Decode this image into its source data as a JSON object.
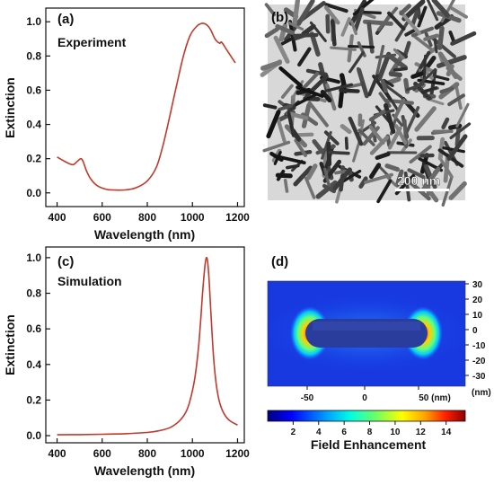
{
  "chart_data": [
    {
      "panel": "(a)",
      "type": "line",
      "annotation": "Experiment",
      "xlabel": "Wavelength (nm)",
      "ylabel": "Extinction",
      "xlim": [
        350,
        1230
      ],
      "ylim": [
        -0.08,
        1.08
      ],
      "xticks": [
        400,
        600,
        800,
        1000,
        1200
      ],
      "yticks": [
        0.0,
        0.2,
        0.4,
        0.6,
        0.8,
        1.0
      ],
      "line_color": "#c0392b",
      "x": [
        400,
        440,
        470,
        490,
        505,
        515,
        530,
        550,
        580,
        620,
        650,
        700,
        750,
        800,
        840,
        870,
        900,
        930,
        960,
        990,
        1020,
        1040,
        1060,
        1080,
        1100,
        1120,
        1130,
        1150,
        1170,
        1190
      ],
      "y": [
        0.21,
        0.18,
        0.165,
        0.185,
        0.2,
        0.185,
        0.13,
        0.08,
        0.04,
        0.02,
        0.017,
        0.017,
        0.03,
        0.07,
        0.15,
        0.28,
        0.45,
        0.63,
        0.8,
        0.92,
        0.975,
        0.99,
        0.985,
        0.955,
        0.9,
        0.875,
        0.88,
        0.84,
        0.8,
        0.76
      ]
    },
    {
      "panel": "(b)",
      "type": "image",
      "scale_bar_label": "200 nm"
    },
    {
      "panel": "(c)",
      "type": "line",
      "annotation": "Simulation",
      "xlabel": "Wavelength (nm)",
      "ylabel": "Extinction",
      "xlim": [
        350,
        1230
      ],
      "ylim": [
        -0.04,
        1.06
      ],
      "xticks": [
        400,
        600,
        800,
        1000,
        1200
      ],
      "yticks": [
        0.0,
        0.2,
        0.4,
        0.6,
        0.8,
        1.0
      ],
      "line_color": "#c0392b",
      "x": [
        400,
        500,
        600,
        700,
        800,
        850,
        900,
        940,
        970,
        990,
        1010,
        1025,
        1035,
        1045,
        1055,
        1062,
        1068,
        1075,
        1085,
        1095,
        1110,
        1130,
        1160,
        1200
      ],
      "y": [
        0.005,
        0.006,
        0.008,
        0.011,
        0.018,
        0.027,
        0.045,
        0.08,
        0.13,
        0.2,
        0.32,
        0.47,
        0.62,
        0.8,
        0.95,
        1.0,
        0.97,
        0.85,
        0.62,
        0.42,
        0.25,
        0.15,
        0.09,
        0.06
      ]
    },
    {
      "panel": "(d)",
      "type": "heatmap",
      "x_ticks": [
        "-50",
        "0",
        "50 (nm)"
      ],
      "y_ticks": [
        "30",
        "20",
        "10",
        "0",
        "-10",
        "-20",
        "-30"
      ],
      "y_unit": "(nm)",
      "colorbar_label": "Field Enhancement",
      "colorbar_ticks": [
        "2",
        "4",
        "6",
        "8",
        "10",
        "12",
        "14"
      ],
      "colorbar_range": [
        0,
        15.5
      ]
    }
  ]
}
